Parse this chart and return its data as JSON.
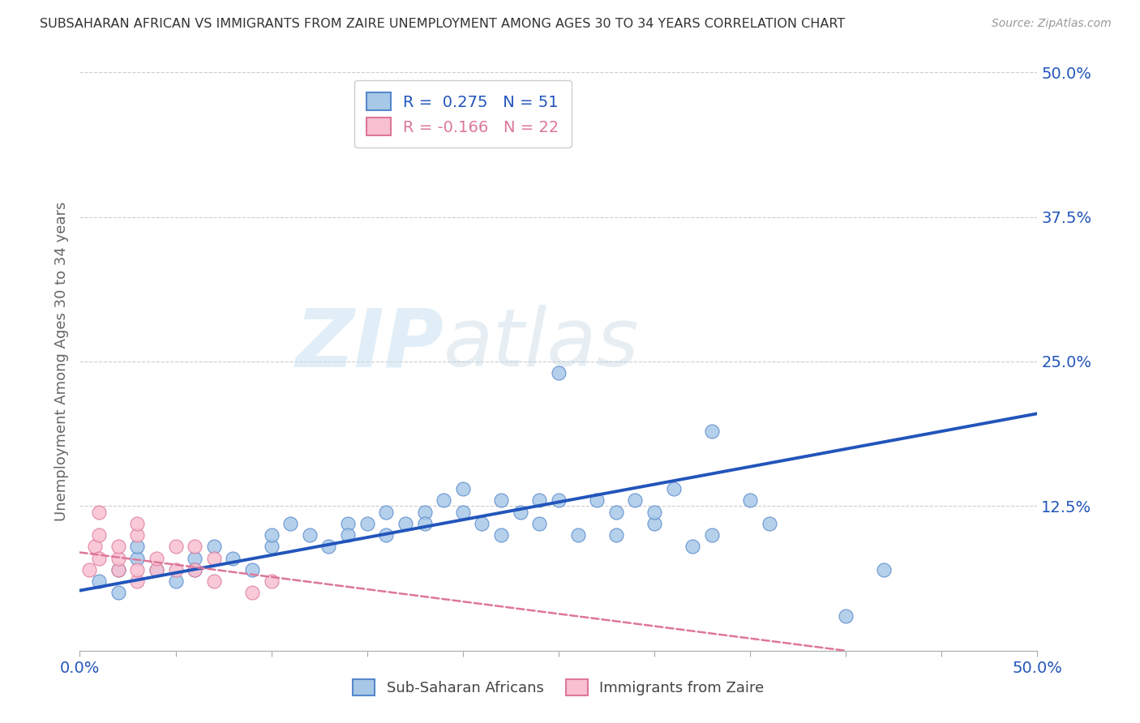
{
  "title": "SUBSAHARAN AFRICAN VS IMMIGRANTS FROM ZAIRE UNEMPLOYMENT AMONG AGES 30 TO 34 YEARS CORRELATION CHART",
  "source": "Source: ZipAtlas.com",
  "ylabel": "Unemployment Among Ages 30 to 34 years",
  "xlim": [
    0.0,
    0.5
  ],
  "ylim": [
    0.0,
    0.5
  ],
  "yticks": [
    0.0,
    0.125,
    0.25,
    0.375,
    0.5
  ],
  "ytick_labels": [
    "",
    "12.5%",
    "25.0%",
    "37.5%",
    "50.0%"
  ],
  "r_blue": 0.275,
  "n_blue": 51,
  "r_pink": -0.166,
  "n_pink": 22,
  "blue_color": "#a8c8e8",
  "blue_edge_color": "#5588cc",
  "blue_line_color": "#2255bb",
  "pink_color": "#f8c0d0",
  "pink_edge_color": "#dd7799",
  "pink_line_color": "#dd7799",
  "blue_scatter_x": [
    0.01,
    0.02,
    0.02,
    0.03,
    0.03,
    0.04,
    0.05,
    0.06,
    0.06,
    0.07,
    0.08,
    0.09,
    0.1,
    0.1,
    0.11,
    0.12,
    0.13,
    0.14,
    0.14,
    0.15,
    0.16,
    0.16,
    0.17,
    0.18,
    0.18,
    0.19,
    0.2,
    0.2,
    0.21,
    0.22,
    0.22,
    0.23,
    0.24,
    0.24,
    0.25,
    0.25,
    0.26,
    0.27,
    0.28,
    0.28,
    0.29,
    0.3,
    0.3,
    0.31,
    0.32,
    0.33,
    0.33,
    0.35,
    0.36,
    0.4,
    0.42
  ],
  "blue_scatter_y": [
    0.06,
    0.05,
    0.07,
    0.08,
    0.09,
    0.07,
    0.06,
    0.08,
    0.07,
    0.09,
    0.08,
    0.07,
    0.09,
    0.1,
    0.11,
    0.1,
    0.09,
    0.11,
    0.1,
    0.11,
    0.12,
    0.1,
    0.11,
    0.12,
    0.11,
    0.13,
    0.12,
    0.14,
    0.11,
    0.13,
    0.1,
    0.12,
    0.13,
    0.11,
    0.13,
    0.24,
    0.1,
    0.13,
    0.12,
    0.1,
    0.13,
    0.11,
    0.12,
    0.14,
    0.09,
    0.1,
    0.19,
    0.13,
    0.11,
    0.03,
    0.07
  ],
  "pink_scatter_x": [
    0.005,
    0.008,
    0.01,
    0.01,
    0.01,
    0.02,
    0.02,
    0.02,
    0.03,
    0.03,
    0.03,
    0.03,
    0.04,
    0.04,
    0.05,
    0.05,
    0.06,
    0.06,
    0.07,
    0.07,
    0.09,
    0.1
  ],
  "pink_scatter_y": [
    0.07,
    0.09,
    0.08,
    0.1,
    0.12,
    0.07,
    0.08,
    0.09,
    0.06,
    0.07,
    0.1,
    0.11,
    0.07,
    0.08,
    0.07,
    0.09,
    0.07,
    0.09,
    0.06,
    0.08,
    0.05,
    0.06
  ],
  "blue_trend_x0": 0.0,
  "blue_trend_y0": 0.052,
  "blue_trend_x1": 0.5,
  "blue_trend_y1": 0.205,
  "pink_trend_x0": 0.0,
  "pink_trend_y0": 0.085,
  "pink_trend_x1": 0.4,
  "pink_trend_y1": 0.0,
  "watermark_zip": "ZIP",
  "watermark_atlas": "atlas",
  "legend_label_blue": "Sub-Saharan Africans",
  "legend_label_pink": "Immigrants from Zaire",
  "background_color": "#ffffff",
  "grid_color": "#cccccc"
}
